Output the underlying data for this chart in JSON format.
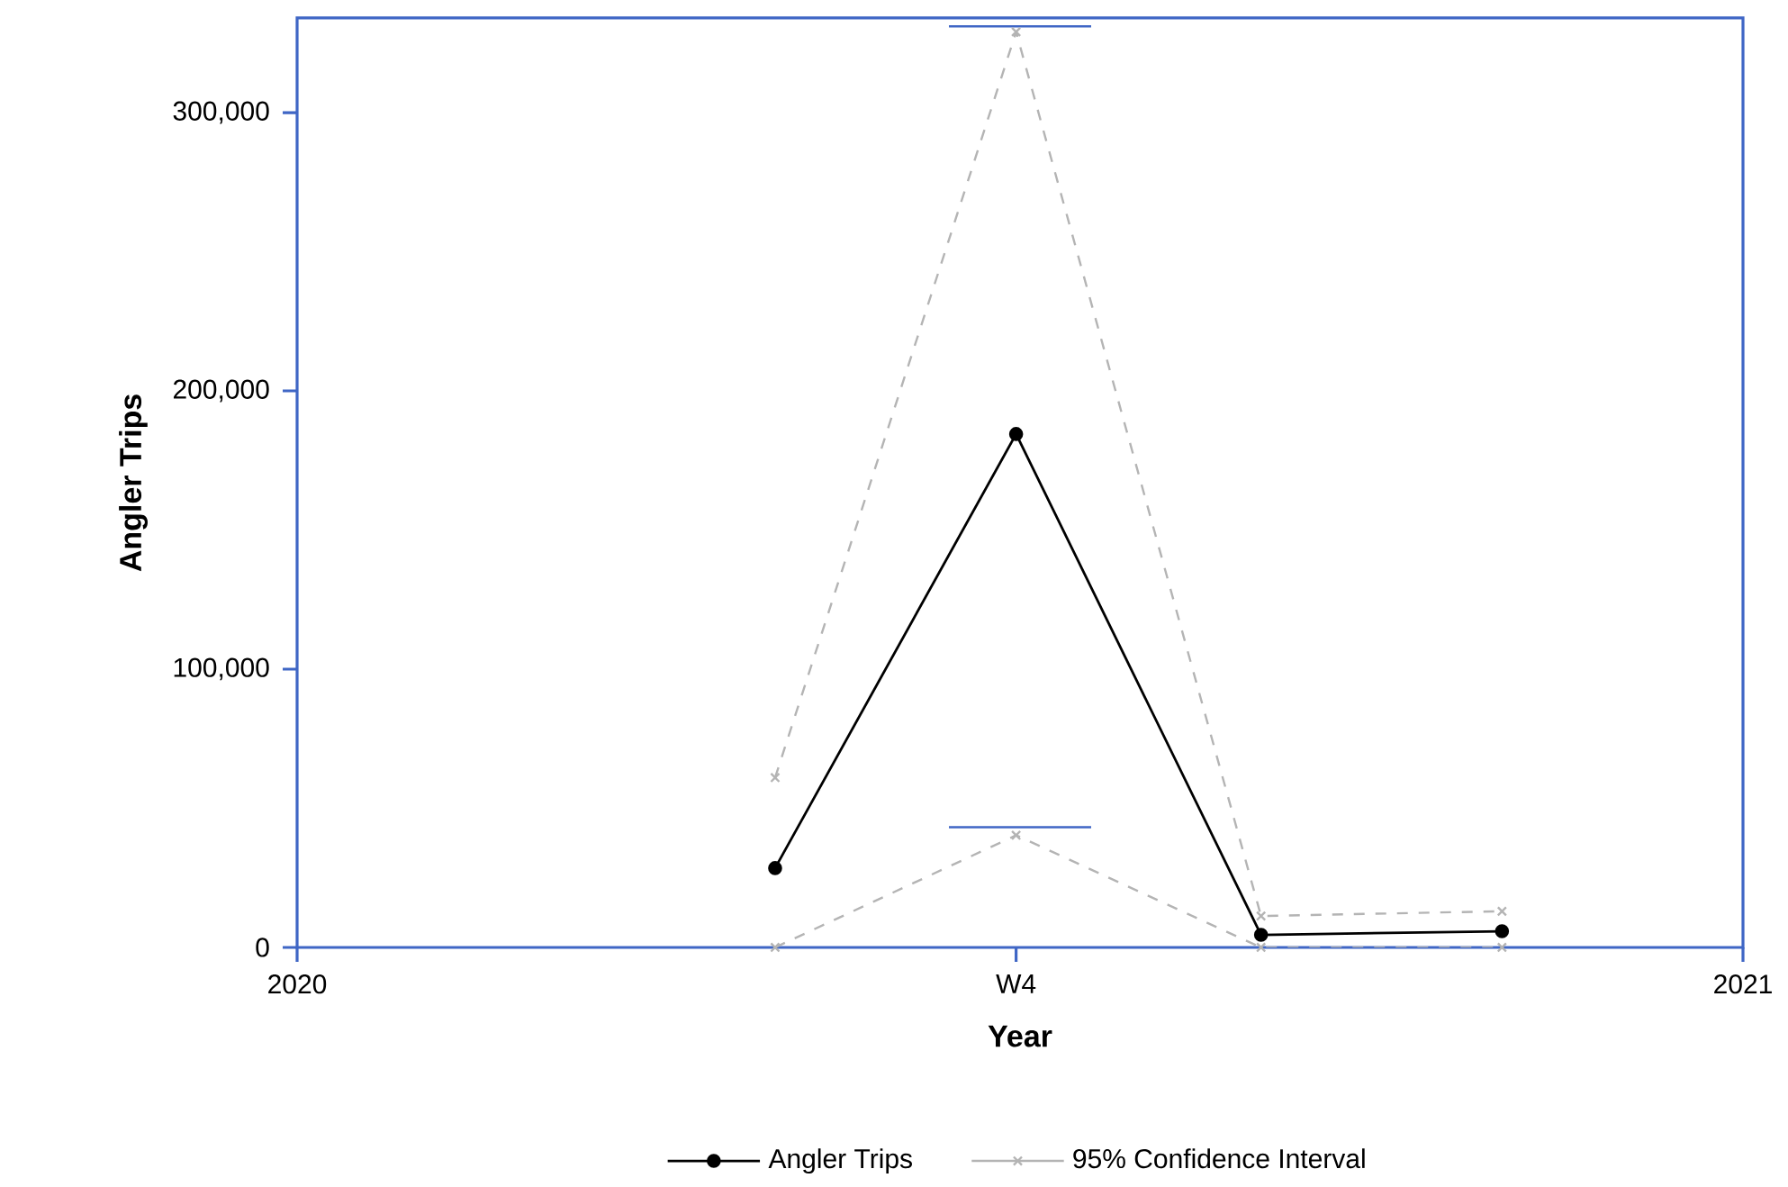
{
  "chart_data": {
    "type": "line",
    "xlabel": "Year",
    "ylabel": "Angler Trips",
    "xlim": [
      "2020",
      "2021"
    ],
    "xticks": [
      "2020",
      {
        "value": "2020-07-01",
        "label": "W4"
      },
      "2021"
    ],
    "ylim": [
      0,
      334000
    ],
    "yticks": [
      0,
      {
        "value": 100000,
        "label": "100,000"
      },
      {
        "value": 200000,
        "label": "200,000"
      },
      {
        "value": 300000,
        "label": "300,000"
      }
    ],
    "grid": false,
    "legend": "bottom",
    "series": [
      {
        "name": "Angler Trips",
        "color": "#000000",
        "marker": "circle",
        "line_style": "solid",
        "x": [
          "2020-05-01",
          "2020-07-01",
          "2020-09-01",
          "2020-11-01"
        ],
        "values": [
          28500,
          184500,
          4500,
          5800
        ]
      },
      {
        "name": "95% Confidence Interval",
        "color": "#b4b4b4",
        "marker": "cross",
        "line_style": "dashed",
        "x": [
          "2020-05-01",
          "2020-07-01",
          "2020-09-01",
          "2020-11-01"
        ],
        "values": [
          61000,
          329000,
          11300,
          13000
        ]
      },
      {
        "color": "#b4b4b4",
        "marker": "cross",
        "line_style": "dashed",
        "x": [
          "2020-05-01",
          "2020-07-01",
          "2020-09-01",
          "2020-11-01"
        ],
        "values": [
          0,
          40300,
          0,
          0
        ]
      },
      {
        "color": "#3f66c5",
        "marker": "none",
        "line_style": "solid",
        "x": [
          "2020-06-14",
          "2020-07-20"
        ],
        "values": [
          331000,
          331000
        ]
      },
      {
        "color": "#3f66c5",
        "marker": "none",
        "line_style": "solid",
        "x": [
          "2020-06-14",
          "2020-07-20"
        ],
        "values": [
          43200,
          43200
        ]
      }
    ]
  }
}
